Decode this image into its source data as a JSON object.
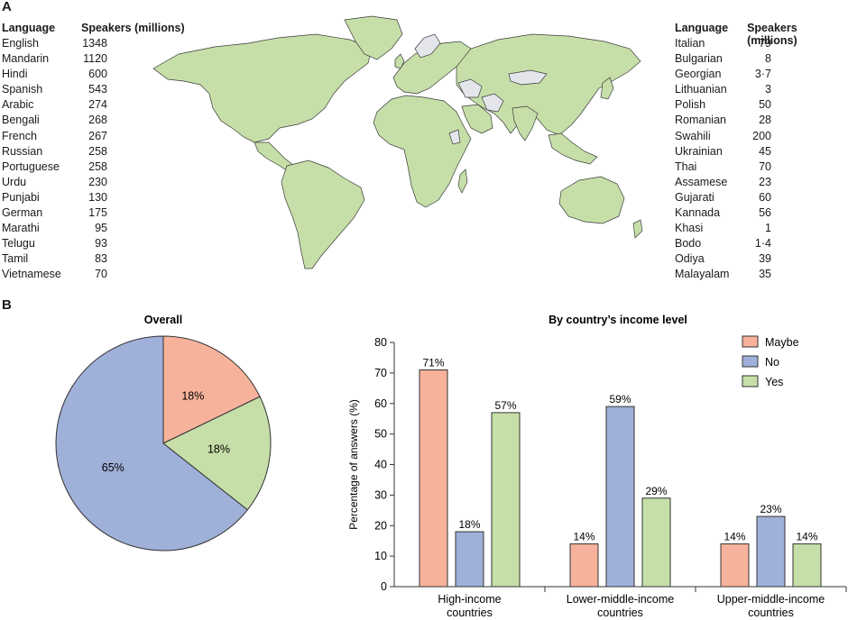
{
  "panel_a": {
    "label": "A"
  },
  "panel_b": {
    "label": "B"
  },
  "table_headers": {
    "language": "Language",
    "speakers": "Speakers (millions)"
  },
  "languages_left": [
    {
      "name": "English",
      "value": "1348"
    },
    {
      "name": "Mandarin",
      "value": "1120"
    },
    {
      "name": "Hindi",
      "value": "600"
    },
    {
      "name": "Spanish",
      "value": "543"
    },
    {
      "name": "Arabic",
      "value": "274"
    },
    {
      "name": "Bengali",
      "value": "268"
    },
    {
      "name": "French",
      "value": "267"
    },
    {
      "name": "Russian",
      "value": "258"
    },
    {
      "name": "Portuguese",
      "value": "258"
    },
    {
      "name": "Urdu",
      "value": "230"
    },
    {
      "name": "Punjabi",
      "value": "130"
    },
    {
      "name": "German",
      "value": "175"
    },
    {
      "name": "Marathi",
      "value": "95"
    },
    {
      "name": "Telugu",
      "value": "93"
    },
    {
      "name": "Tamil",
      "value": "83"
    },
    {
      "name": "Vietnamese",
      "value": "70"
    }
  ],
  "languages_right": [
    {
      "name": "Italian",
      "value": "79"
    },
    {
      "name": "Bulgarian",
      "value": "8"
    },
    {
      "name": "Georgian",
      "value": "3·7"
    },
    {
      "name": "Lithuanian",
      "value": "3"
    },
    {
      "name": "Polish",
      "value": "50"
    },
    {
      "name": "Romanian",
      "value": "28"
    },
    {
      "name": "Swahili",
      "value": "200"
    },
    {
      "name": "Ukrainian",
      "value": "45"
    },
    {
      "name": "Thai",
      "value": "70"
    },
    {
      "name": "Assamese",
      "value": "23"
    },
    {
      "name": "Gujarati",
      "value": "60"
    },
    {
      "name": "Kannada",
      "value": "56"
    },
    {
      "name": "Khasi",
      "value": "1"
    },
    {
      "name": "Bodo",
      "value": "1·4"
    },
    {
      "name": "Odiya",
      "value": "39"
    },
    {
      "name": "Malayalam",
      "value": "35"
    }
  ],
  "map_colors": {
    "land": "#c6dfa8",
    "not_covered": "#e4e6ec",
    "border": "#3a3a3a"
  },
  "colors": {
    "Maybe": "#f7b29b",
    "No": "#9fb0d9",
    "Yes": "#c6dfa8",
    "axis": "#333333"
  },
  "chart_data": [
    {
      "type": "pie",
      "title": "Overall",
      "slices": [
        {
          "name": "Maybe",
          "value": 18,
          "label": "18%"
        },
        {
          "name": "Yes",
          "value": 18,
          "label": "18%"
        },
        {
          "name": "No",
          "value": 65,
          "label": "65%"
        }
      ]
    },
    {
      "type": "bar",
      "title": "By country’s income level",
      "ylabel": "Percentage of answers (%)",
      "xlabel": "",
      "ylim": [
        0,
        80
      ],
      "yticks": [
        0,
        10,
        20,
        30,
        40,
        50,
        60,
        70,
        80
      ],
      "legend_position": "top-right",
      "categories": [
        [
          "High-income",
          "countries"
        ],
        [
          "Lower-middle-income",
          "countries"
        ],
        [
          "Upper-middle-income",
          "countries"
        ]
      ],
      "series": [
        {
          "name": "Maybe",
          "values": [
            71,
            14,
            14
          ],
          "labels": [
            "71%",
            "14%",
            "14%"
          ]
        },
        {
          "name": "No",
          "values": [
            18,
            59,
            23
          ],
          "labels": [
            "18%",
            "59%",
            "23%"
          ]
        },
        {
          "name": "Yes",
          "values": [
            57,
            29,
            14
          ],
          "labels": [
            "57%",
            "29%",
            "14%"
          ]
        }
      ]
    }
  ]
}
